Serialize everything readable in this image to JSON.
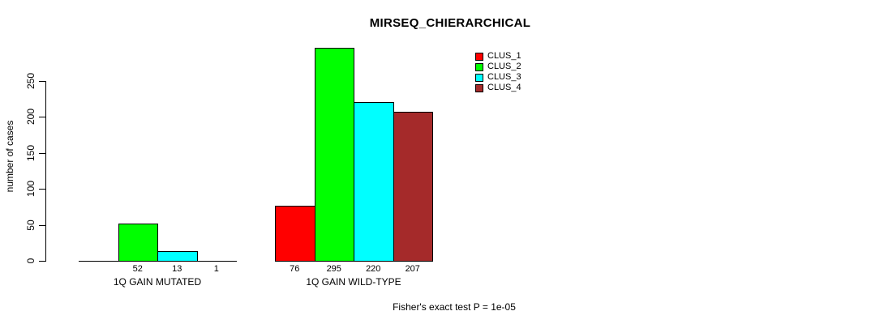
{
  "chart_data": {
    "type": "bar",
    "title": "MIRSEQ_CHIERARCHICAL",
    "ylabel": "number of cases",
    "xlabel": "",
    "ylim": [
      0,
      300
    ],
    "yticks": [
      0,
      50,
      100,
      150,
      200,
      250
    ],
    "grid": false,
    "annotation": "Fisher's exact test P = 1e-05",
    "legend_position": "top-right",
    "categories": [
      "1Q GAIN MUTATED",
      "1Q GAIN WILD-TYPE"
    ],
    "series": [
      {
        "name": "CLUS_1",
        "color": "#FF0000",
        "values": [
          0,
          76
        ]
      },
      {
        "name": "CLUS_2",
        "color": "#00FF00",
        "values": [
          52,
          295
        ]
      },
      {
        "name": "CLUS_3",
        "color": "#00FFFF",
        "values": [
          13,
          220
        ]
      },
      {
        "name": "CLUS_4",
        "color": "#A52A2A",
        "values": [
          1,
          207
        ]
      }
    ],
    "bar_value_labels": [
      [
        "",
        "52",
        "13",
        "1"
      ],
      [
        "76",
        "295",
        "220",
        "207"
      ]
    ]
  }
}
